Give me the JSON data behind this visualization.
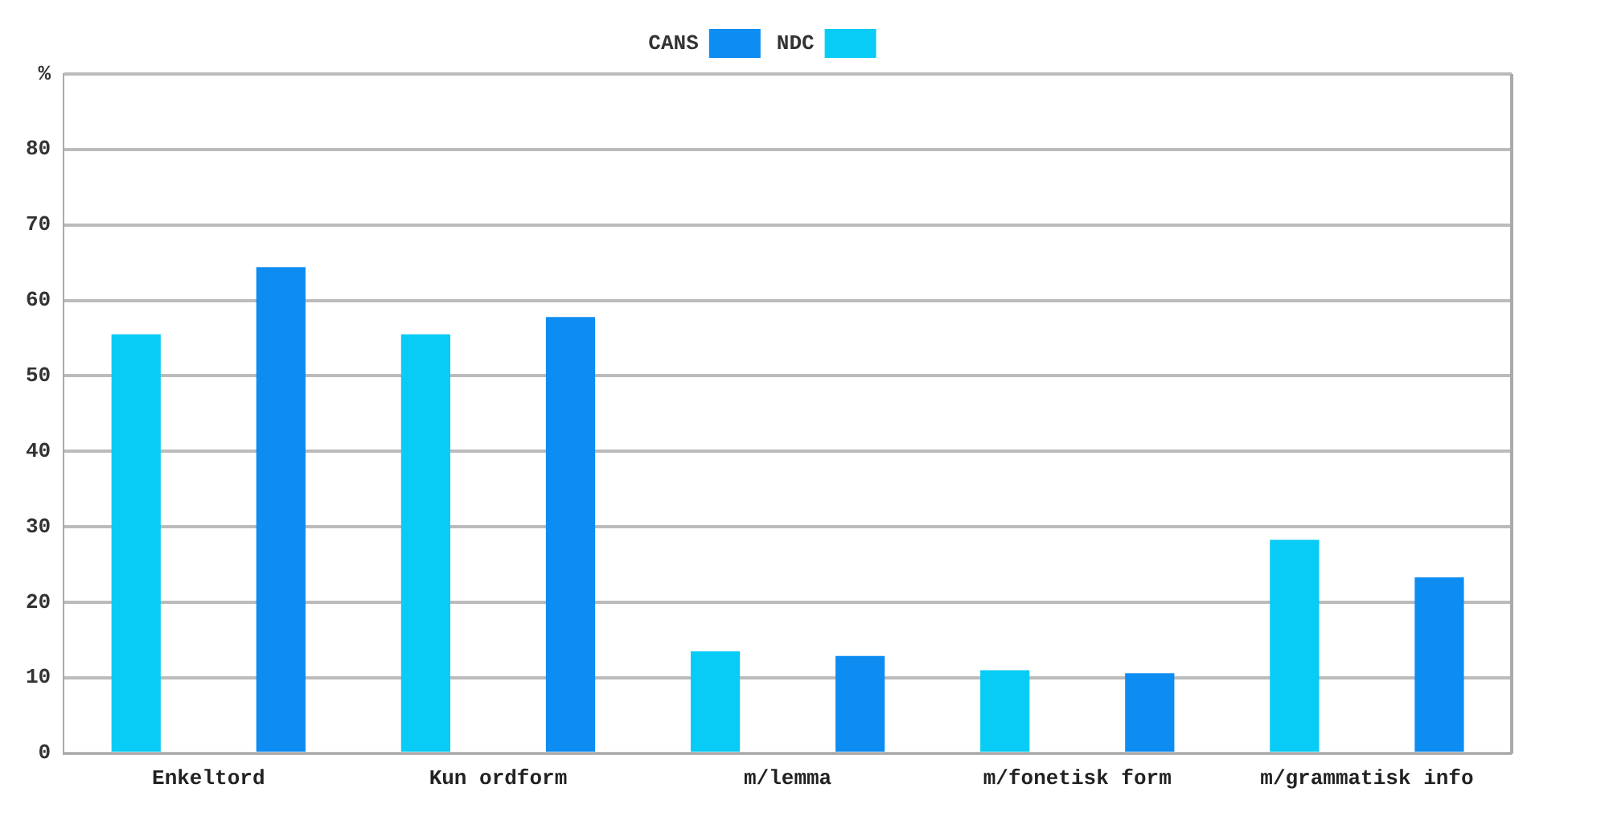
{
  "chart_data": {
    "type": "bar",
    "categories": [
      "Enkeltord",
      "Kun ordform",
      "m/lemma",
      "m/fonetisk form",
      "m/grammatisk info"
    ],
    "series": [
      {
        "name": "NDC",
        "color": "#08ccf5",
        "values": [
          55.5,
          55.5,
          13.5,
          11.0,
          28.3
        ]
      },
      {
        "name": "CANS",
        "color": "#0d8cf2",
        "values": [
          64.4,
          57.8,
          12.9,
          10.6,
          23.3
        ]
      }
    ],
    "ylim": [
      0,
      90
    ],
    "yticks": [
      0,
      10,
      20,
      30,
      40,
      50,
      60,
      70,
      80,
      {
        "value": 90,
        "label": "%"
      }
    ],
    "grid": "y",
    "legend": "top"
  }
}
